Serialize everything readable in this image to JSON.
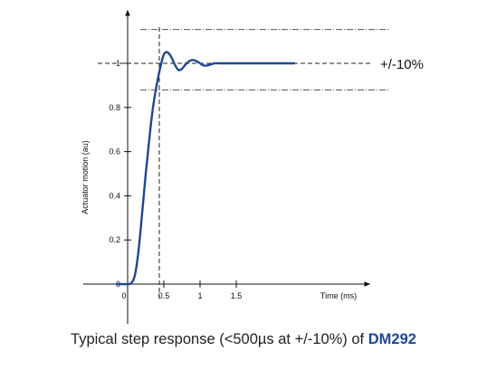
{
  "chart_data": {
    "type": "line",
    "title": "",
    "xlabel": "Time (ms)",
    "ylabel": "Actuator motion (au)",
    "xlim": [
      -0.3,
      2.7
    ],
    "ylim": [
      0,
      1.15
    ],
    "x_ticks": [
      0,
      0.5,
      1,
      1.5
    ],
    "x_tick_labels": [
      "0",
      "0.5",
      "1",
      "1.5"
    ],
    "y_ticks": [
      0,
      0.2,
      0.4,
      0.6,
      0.8,
      1
    ],
    "y_tick_labels": [
      "0",
      "0.2",
      "0.4",
      "0.6",
      "0.8",
      "1"
    ],
    "grid": false,
    "series": [
      {
        "name": "",
        "color": "#1f4796",
        "x": [
          -0.15,
          0.0,
          0.05,
          0.1,
          0.15,
          0.2,
          0.25,
          0.3,
          0.35,
          0.4,
          0.45,
          0.5,
          0.55,
          0.6,
          0.65,
          0.7,
          0.75,
          0.8,
          0.85,
          0.9,
          0.95,
          1.0,
          1.05,
          1.1,
          1.15,
          1.2,
          1.3,
          1.4,
          1.6,
          1.8,
          2.0,
          2.2,
          2.3
        ],
        "y": [
          0.0,
          0.0,
          0.005,
          0.04,
          0.15,
          0.32,
          0.5,
          0.66,
          0.8,
          0.9,
          0.98,
          1.04,
          1.05,
          1.03,
          0.995,
          0.97,
          0.975,
          0.995,
          1.01,
          1.015,
          1.01,
          1.0,
          0.99,
          0.99,
          0.995,
          1.0,
          1.0,
          1.0,
          1.0,
          1.0,
          1.0,
          1.0,
          1.0
        ]
      }
    ],
    "reference_lines": {
      "target_value": 1.0,
      "tolerance_band": [
        0.9,
        1.1
      ],
      "tolerance_label": "+/-10%",
      "marker_time": 0.5
    }
  },
  "caption": {
    "text": "Typical step response (<500µs at +/-10%) of ",
    "product": "DM292"
  }
}
